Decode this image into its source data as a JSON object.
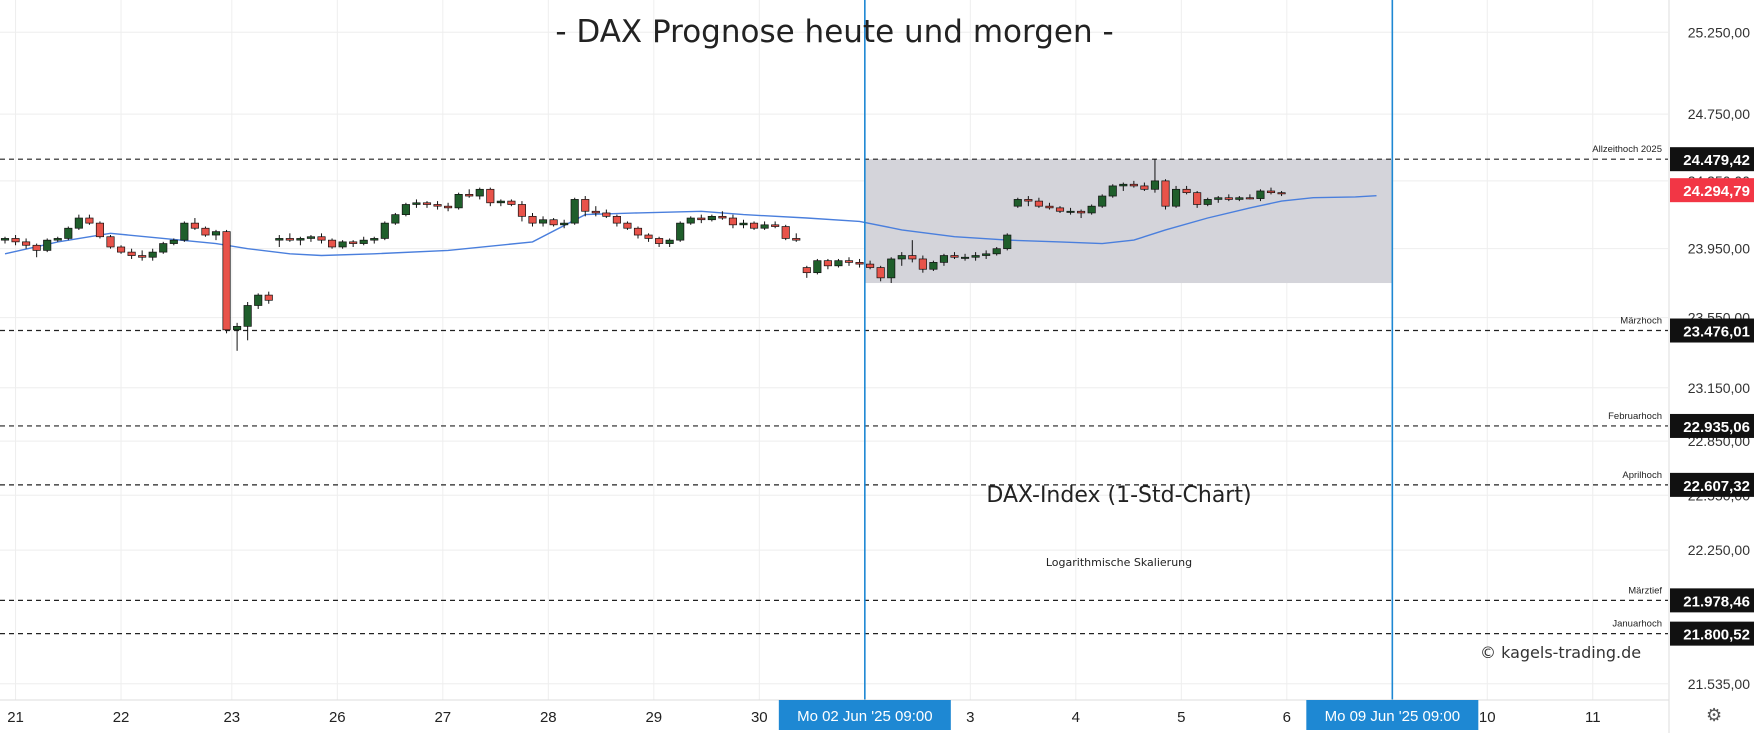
{
  "title": "- DAX Prognose heute und morgen -",
  "subtitle": "DAX-Index (1-Std-Chart)",
  "note": "Logarithmische Skalierung",
  "credit": "© kagels-trading.de",
  "settings_icon": "settings-gear-icon",
  "colors": {
    "up": "#1f5e2b",
    "down": "#e8534a",
    "ma": "#4a7fdd",
    "vline": "#1e88d3",
    "band": "#d2d2d8",
    "current": "#f23645"
  },
  "chart_data": {
    "type": "candlestick",
    "scale": "log",
    "ylim": [
      21450,
      25450
    ],
    "yticks": [
      25250,
      24750,
      24350,
      23950,
      23550,
      23150,
      22850,
      22550,
      22250,
      21535
    ],
    "ytick_labels": [
      "25.250,00",
      "24.750,00",
      "24.350,00",
      "23.950,00",
      "23.550,00",
      "23.150,00",
      "22.850,00",
      "22.550,00",
      "22.250,00",
      "21.535,00"
    ],
    "xtick_labels": [
      "21",
      "22",
      "23",
      "26",
      "27",
      "28",
      "29",
      "30",
      "3",
      "4",
      "5",
      "6",
      "10",
      "11"
    ],
    "time_markers": [
      {
        "label": "Mo 02 Jun '25   09:00",
        "bar": 81.5
      },
      {
        "label": "Mo 09 Jun '25   09:00",
        "bar": 131.5
      }
    ],
    "current_price": {
      "value": 24294.79,
      "label": "24.294,79"
    },
    "levels": [
      {
        "name": "Allzeithoch 2025",
        "value": 24479.42,
        "label": "24.479,42"
      },
      {
        "name": "Märzhoch",
        "value": 23476.01,
        "label": "23.476,01"
      },
      {
        "name": "Februarhoch",
        "value": 22935.06,
        "label": "22.935,06"
      },
      {
        "name": "Aprilhoch",
        "value": 22607.32,
        "label": "22.607,32"
      },
      {
        "name": "Märztief",
        "value": 21978.46,
        "label": "21.978,46"
      },
      {
        "name": "Januarhoch",
        "value": 21800.52,
        "label": "21.800,52"
      }
    ],
    "range_band": {
      "from_bar": 81.5,
      "to_bar": 131.5,
      "high": 24479.42,
      "low": 23750
    },
    "ohlc": [
      [
        24000,
        24020,
        23980,
        24010
      ],
      [
        24010,
        24030,
        23970,
        23990
      ],
      [
        23990,
        24010,
        23950,
        23970
      ],
      [
        23970,
        23980,
        23900,
        23940
      ],
      [
        23940,
        24010,
        23930,
        24000
      ],
      [
        24000,
        24020,
        23990,
        24010
      ],
      [
        24010,
        24080,
        24000,
        24070
      ],
      [
        24070,
        24150,
        24060,
        24130
      ],
      [
        24130,
        24150,
        24090,
        24100
      ],
      [
        24100,
        24110,
        24010,
        24020
      ],
      [
        24020,
        24030,
        23950,
        23960
      ],
      [
        23960,
        23970,
        23920,
        23930
      ],
      [
        23930,
        23950,
        23890,
        23910
      ],
      [
        23910,
        23940,
        23880,
        23900
      ],
      [
        23900,
        23950,
        23880,
        23930
      ],
      [
        23930,
        23990,
        23920,
        23980
      ],
      [
        23980,
        24010,
        23970,
        24000
      ],
      [
        24000,
        24110,
        23990,
        24100
      ],
      [
        24100,
        24130,
        24060,
        24070
      ],
      [
        24070,
        24080,
        24020,
        24030
      ],
      [
        24030,
        24060,
        24000,
        24050
      ],
      [
        24050,
        24060,
        23460,
        23480
      ],
      [
        23480,
        23520,
        23360,
        23500
      ],
      [
        23500,
        23640,
        23420,
        23620
      ],
      [
        23620,
        23690,
        23600,
        23680
      ],
      [
        23680,
        23700,
        23630,
        23650
      ],
      [
        24000,
        24030,
        23960,
        24010
      ],
      [
        24010,
        24040,
        23990,
        24000
      ],
      [
        24000,
        24020,
        23970,
        24010
      ],
      [
        24010,
        24030,
        23990,
        24020
      ],
      [
        24020,
        24040,
        23980,
        24000
      ],
      [
        24000,
        24010,
        23950,
        23960
      ],
      [
        23960,
        24000,
        23950,
        23990
      ],
      [
        23990,
        24000,
        23960,
        23980
      ],
      [
        23980,
        24020,
        23970,
        24000
      ],
      [
        24000,
        24020,
        23980,
        24010
      ],
      [
        24010,
        24110,
        24000,
        24100
      ],
      [
        24100,
        24160,
        24090,
        24150
      ],
      [
        24150,
        24220,
        24140,
        24210
      ],
      [
        24210,
        24240,
        24190,
        24220
      ],
      [
        24220,
        24230,
        24190,
        24210
      ],
      [
        24210,
        24230,
        24180,
        24200
      ],
      [
        24200,
        24220,
        24170,
        24190
      ],
      [
        24190,
        24280,
        24180,
        24270
      ],
      [
        24270,
        24300,
        24250,
        24260
      ],
      [
        24260,
        24310,
        24240,
        24300
      ],
      [
        24300,
        24310,
        24200,
        24220
      ],
      [
        24220,
        24240,
        24200,
        24230
      ],
      [
        24230,
        24240,
        24200,
        24210
      ],
      [
        24210,
        24230,
        24110,
        24140
      ],
      [
        24140,
        24160,
        24080,
        24100
      ],
      [
        24100,
        24140,
        24080,
        24120
      ],
      [
        24120,
        24130,
        24080,
        24090
      ],
      [
        24090,
        24120,
        24070,
        24100
      ],
      [
        24100,
        24250,
        24090,
        24240
      ],
      [
        24240,
        24260,
        24140,
        24170
      ],
      [
        24170,
        24200,
        24140,
        24160
      ],
      [
        24160,
        24180,
        24130,
        24140
      ],
      [
        24140,
        24150,
        24080,
        24100
      ],
      [
        24100,
        24110,
        24060,
        24070
      ],
      [
        24070,
        24080,
        24010,
        24030
      ],
      [
        24030,
        24040,
        23990,
        24010
      ],
      [
        24010,
        24020,
        23960,
        23980
      ],
      [
        23980,
        24010,
        23960,
        24000
      ],
      [
        24000,
        24110,
        23990,
        24100
      ],
      [
        24100,
        24140,
        24090,
        24130
      ],
      [
        24130,
        24150,
        24100,
        24120
      ],
      [
        24120,
        24150,
        24110,
        24140
      ],
      [
        24140,
        24170,
        24120,
        24130
      ],
      [
        24130,
        24150,
        24070,
        24090
      ],
      [
        24090,
        24120,
        24070,
        24100
      ],
      [
        24100,
        24110,
        24060,
        24070
      ],
      [
        24070,
        24110,
        24060,
        24090
      ],
      [
        24090,
        24110,
        24070,
        24080
      ],
      [
        24080,
        24090,
        24000,
        24010
      ],
      [
        24010,
        24040,
        23990,
        24000
      ],
      [
        23840,
        23850,
        23780,
        23810
      ],
      [
        23810,
        23890,
        23800,
        23880
      ],
      [
        23880,
        23890,
        23830,
        23850
      ],
      [
        23850,
        23890,
        23840,
        23880
      ],
      [
        23880,
        23900,
        23850,
        23870
      ],
      [
        23870,
        23890,
        23840,
        23860
      ],
      [
        23860,
        23880,
        23830,
        23840
      ],
      [
        23840,
        23850,
        23760,
        23780
      ],
      [
        23780,
        23900,
        23750,
        23890
      ],
      [
        23890,
        23930,
        23850,
        23910
      ],
      [
        23910,
        24000,
        23870,
        23890
      ],
      [
        23890,
        23910,
        23810,
        23830
      ],
      [
        23830,
        23880,
        23820,
        23870
      ],
      [
        23870,
        23920,
        23850,
        23910
      ],
      [
        23910,
        23930,
        23890,
        23900
      ],
      [
        23900,
        23920,
        23880,
        23900
      ],
      [
        23900,
        23930,
        23880,
        23910
      ],
      [
        23910,
        23940,
        23890,
        23920
      ],
      [
        23920,
        23960,
        23910,
        23950
      ],
      [
        23950,
        24040,
        23940,
        24030
      ],
      [
        24200,
        24250,
        24190,
        24240
      ],
      [
        24240,
        24260,
        24200,
        24230
      ],
      [
        24230,
        24250,
        24190,
        24200
      ],
      [
        24200,
        24220,
        24180,
        24190
      ],
      [
        24190,
        24200,
        24160,
        24170
      ],
      [
        24170,
        24190,
        24150,
        24170
      ],
      [
        24170,
        24180,
        24130,
        24160
      ],
      [
        24160,
        24210,
        24150,
        24200
      ],
      [
        24200,
        24270,
        24190,
        24260
      ],
      [
        24260,
        24330,
        24250,
        24320
      ],
      [
        24320,
        24340,
        24290,
        24330
      ],
      [
        24330,
        24350,
        24310,
        24320
      ],
      [
        24320,
        24340,
        24290,
        24300
      ],
      [
        24300,
        24480,
        24280,
        24350
      ],
      [
        24350,
        24360,
        24180,
        24200
      ],
      [
        24200,
        24320,
        24190,
        24300
      ],
      [
        24300,
        24320,
        24270,
        24280
      ],
      [
        24280,
        24290,
        24190,
        24210
      ],
      [
        24210,
        24250,
        24200,
        24240
      ],
      [
        24240,
        24260,
        24220,
        24250
      ],
      [
        24250,
        24270,
        24230,
        24240
      ],
      [
        24240,
        24260,
        24230,
        24250
      ],
      [
        24250,
        24270,
        24240,
        24245
      ],
      [
        24245,
        24300,
        24230,
        24290
      ],
      [
        24290,
        24310,
        24270,
        24280
      ],
      [
        24280,
        24290,
        24260,
        24275
      ]
    ],
    "ma": [
      [
        0,
        23920
      ],
      [
        5,
        23990
      ],
      [
        10,
        24040
      ],
      [
        15,
        24010
      ],
      [
        20,
        23980
      ],
      [
        23,
        23950
      ],
      [
        27,
        23920
      ],
      [
        30,
        23910
      ],
      [
        35,
        23920
      ],
      [
        42,
        23940
      ],
      [
        50,
        23990
      ],
      [
        55,
        24150
      ],
      [
        60,
        24160
      ],
      [
        66,
        24170
      ],
      [
        70,
        24150
      ],
      [
        76,
        24130
      ],
      [
        81,
        24110
      ],
      [
        85,
        24060
      ],
      [
        90,
        24020
      ],
      [
        95,
        24000
      ],
      [
        100,
        23990
      ],
      [
        104,
        23980
      ],
      [
        107,
        24000
      ],
      [
        110,
        24060
      ],
      [
        114,
        24130
      ],
      [
        118,
        24190
      ],
      [
        121,
        24230
      ],
      [
        124,
        24250
      ],
      [
        128,
        24255
      ],
      [
        130,
        24262
      ]
    ]
  }
}
